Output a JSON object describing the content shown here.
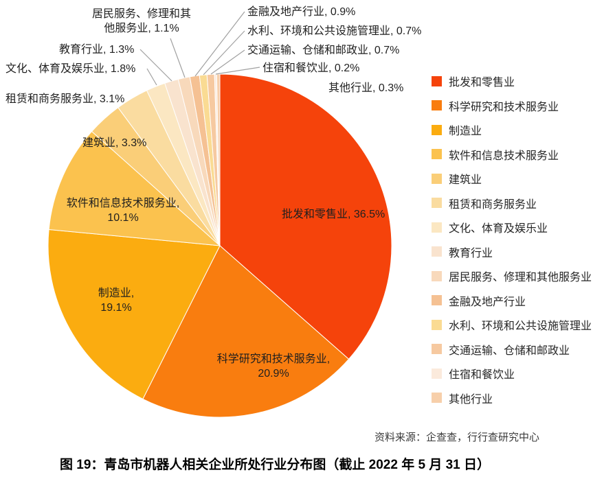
{
  "figure": {
    "caption": "图 19：青岛市机器人相关企业所处行业分布图（截止 2022 年 5 月 31 日）",
    "source": "资料来源：企查查，行行查研究中心"
  },
  "chart_data": {
    "type": "pie",
    "title": "图 19：青岛市机器人相关企业所处行业分布图（截止 2022 年 5 月 31 日）",
    "source": "资料来源：企查查，行行查研究中心",
    "start_angle": "top",
    "direction": "clockwise",
    "legend_position": "right",
    "categories": [
      "批发和零售业",
      "科学研究和技术服务业",
      "制造业",
      "软件和信息技术服务业",
      "建筑业",
      "租赁和商务服务业",
      "文化、体育及娱乐业",
      "教育行业",
      "居民服务、修理和其他服务业",
      "金融及地产行业",
      "水利、环境和公共设施管理业",
      "交通运输、仓储和邮政业",
      "住宿和餐饮业",
      "其他行业"
    ],
    "values": [
      36.5,
      20.9,
      19.1,
      10.1,
      3.3,
      3.1,
      1.8,
      1.3,
      1.1,
      0.9,
      0.7,
      0.7,
      0.2,
      0.3
    ],
    "colors": [
      "#F5430B",
      "#F97D0F",
      "#FBAC10",
      "#FBC24E",
      "#FACE78",
      "#FADCA0",
      "#FBE7C2",
      "#F9E3CE",
      "#F8D9BB",
      "#F5C193",
      "#FADB93",
      "#F6C9A0",
      "#FBEADC",
      "#F7CFAA"
    ],
    "slice_labels": [
      "批发和零售业, 36.5%",
      "科学研究和技术服务业, 20.9%",
      "制造业, 19.1%",
      "软件和信息技术服务业, 10.1%",
      "建筑业, 3.3%",
      "租赁和商务服务业, 3.1%",
      "文化、体育及娱乐业, 1.8%",
      "教育行业, 1.3%",
      "居民服务、修理和其他服务业, 1.1%",
      "金融及地产行业, 0.9%",
      "水利、环境和公共设施管理业, 0.7%",
      "交通运输、仓储和邮政业, 0.7%",
      "住宿和餐饮业, 0.2%",
      "其他行业, 0.3%"
    ]
  }
}
